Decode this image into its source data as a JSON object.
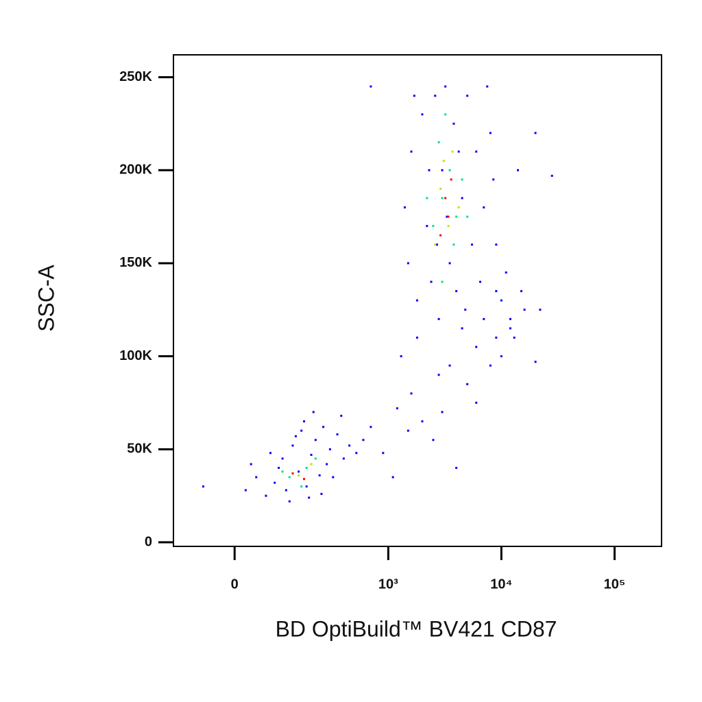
{
  "chart_data": {
    "type": "scatter",
    "xlabel": "BD OptiBuild™ BV421 CD87",
    "ylabel": "SSC-A",
    "xscale": "biex",
    "xlim": [
      -140,
      260000
    ],
    "ylim": [
      -2200,
      262000
    ],
    "xticks": [
      0,
      {
        "value": 1000,
        "label": "10³"
      },
      {
        "value": 10000,
        "label": "10⁴"
      },
      {
        "value": 100000,
        "label": "10⁵"
      }
    ],
    "yticks": [
      0,
      {
        "value": 50000,
        "label": "50K"
      },
      {
        "value": 100000,
        "label": "100K"
      },
      {
        "value": 150000,
        "label": "150K"
      },
      {
        "value": 200000,
        "label": "200K"
      },
      {
        "value": 250000,
        "label": "250K"
      }
    ],
    "series": [
      {
        "color": "#0000ff",
        "x": [
          -60,
          20,
          40,
          60,
          80,
          90,
          100,
          110,
          130,
          150,
          160,
          180,
          200,
          220,
          240,
          260,
          280,
          300,
          350,
          400,
          450,
          520,
          600,
          700,
          120,
          170,
          250,
          320,
          380,
          900,
          140,
          70,
          30,
          210,
          190,
          1400,
          1500,
          1600,
          1800,
          2000,
          2200,
          2400,
          2600,
          2800,
          3000,
          3200,
          3500,
          3800,
          4000,
          4500,
          5000,
          5500,
          6000,
          6500,
          7000,
          8000,
          9000,
          10000,
          12000,
          14000,
          20000,
          28000,
          1700,
          2300,
          2700,
          3300,
          4200,
          4800,
          7500,
          8500,
          11000,
          13000,
          16000,
          1300,
          1600,
          2000,
          2500,
          3000,
          3500,
          4000,
          5000,
          6000,
          7000,
          8000,
          9000,
          10000,
          1800,
          2800,
          4500,
          12000,
          15000,
          22000,
          1100,
          1200,
          1500,
          6000,
          20000,
          9000,
          700
        ],
        "y": [
          30000,
          28000,
          35000,
          25000,
          32000,
          40000,
          45000,
          28000,
          52000,
          38000,
          60000,
          30000,
          47000,
          55000,
          36000,
          62000,
          42000,
          50000,
          58000,
          45000,
          52000,
          48000,
          55000,
          62000,
          22000,
          65000,
          26000,
          35000,
          68000,
          48000,
          57000,
          48000,
          42000,
          70000,
          24000,
          180000,
          150000,
          210000,
          130000,
          230000,
          170000,
          140000,
          240000,
          120000,
          200000,
          245000,
          150000,
          225000,
          135000,
          185000,
          240000,
          160000,
          210000,
          140000,
          180000,
          220000,
          160000,
          130000,
          115000,
          200000,
          220000,
          197000,
          240000,
          200000,
          160000,
          175000,
          210000,
          125000,
          245000,
          195000,
          145000,
          110000,
          125000,
          100000,
          80000,
          65000,
          55000,
          70000,
          95000,
          40000,
          85000,
          105000,
          120000,
          95000,
          110000,
          100000,
          110000,
          90000,
          115000,
          120000,
          135000,
          125000,
          35000,
          72000,
          60000,
          75000,
          97000,
          135000,
          245000
        ]
      },
      {
        "color": "#00e080",
        "x": [
          120,
          180,
          220,
          160,
          100,
          2500,
          3000,
          3500,
          4000,
          2800,
          3800,
          4500,
          3200,
          2200,
          5000,
          3000
        ],
        "y": [
          35000,
          40000,
          45000,
          30000,
          38000,
          170000,
          185000,
          200000,
          175000,
          215000,
          160000,
          195000,
          230000,
          185000,
          175000,
          140000
        ]
      },
      {
        "color": "#c8e000",
        "x": [
          150,
          200,
          2900,
          3400,
          3700,
          2600,
          4200,
          3100
        ],
        "y": [
          36000,
          42000,
          190000,
          170000,
          210000,
          160000,
          180000,
          205000
        ]
      },
      {
        "color": "#ff0000",
        "x": [
          170,
          130,
          3200,
          3600,
          2900,
          3400
        ],
        "y": [
          34000,
          37000,
          185000,
          195000,
          165000,
          175000
        ]
      }
    ]
  }
}
